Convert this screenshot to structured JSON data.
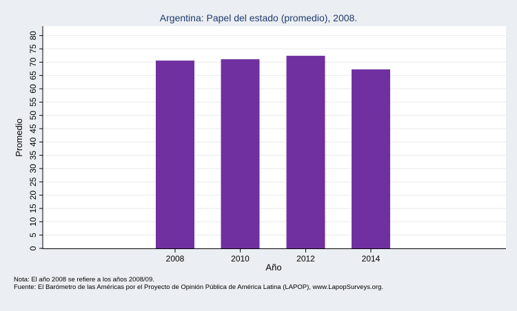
{
  "chart_data": {
    "type": "bar",
    "title": "Argentina: Papel del estado (promedio), 2008.",
    "xlabel": "Año",
    "ylabel": "Promedio",
    "categories": [
      "2008",
      "2010",
      "2012",
      "2014"
    ],
    "values": [
      70.6,
      71.1,
      72.4,
      67.3
    ],
    "ylim": [
      0,
      80
    ],
    "yticks": [
      "0",
      "5",
      "10",
      "15",
      "20",
      "25",
      "30",
      "35",
      "40",
      "45",
      "50",
      "55",
      "60",
      "65",
      "70",
      "75",
      "80"
    ],
    "bar_color": "#7030a0",
    "grid": true
  },
  "notes": {
    "nota": "Nota: El año 2008 se refiere a los años 2008/09.",
    "fuente": "Fuente: El Barómetro de las Américas por el Proyecto de Opinión Pública de América Latina (LAPOP), www.LapopSurveys.org."
  }
}
